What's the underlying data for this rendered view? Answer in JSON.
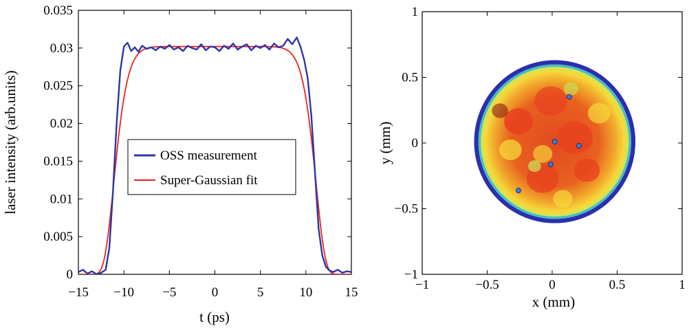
{
  "chart_data": [
    {
      "type": "line",
      "title": "",
      "xlabel": "t (ps)",
      "ylabel": "laser intensity (arb.units)",
      "xlim": [
        -15,
        15
      ],
      "ylim": [
        0,
        0.035
      ],
      "xticks": [
        -15,
        -10,
        -5,
        0,
        5,
        10,
        15
      ],
      "xtick_labels": [
        "−15",
        "−10",
        "−5",
        "0",
        "5",
        "10",
        "15"
      ],
      "yticks": [
        0,
        0.005,
        0.01,
        0.015,
        0.02,
        0.025,
        0.03,
        0.035
      ],
      "ytick_labels": [
        "0",
        "0.005",
        "0.01",
        "0.015",
        "0.02",
        "0.025",
        "0.03",
        "0.035"
      ],
      "grid": false,
      "legend_position": "center-left",
      "series": [
        {
          "name": "OSS measurement",
          "color": "#2b35a6",
          "x": [
            -15,
            -14.5,
            -14,
            -13.5,
            -13,
            -12.5,
            -12,
            -11.6,
            -11.2,
            -10.8,
            -10.4,
            -10.0,
            -9.6,
            -9.2,
            -8.8,
            -8.4,
            -8.0,
            -7.5,
            -7.0,
            -6.5,
            -6.0,
            -5.5,
            -5.0,
            -4.5,
            -4.0,
            -3.5,
            -3.0,
            -2.5,
            -2.0,
            -1.5,
            -1.0,
            -0.5,
            0.0,
            0.5,
            1.0,
            1.5,
            2.0,
            2.5,
            3.0,
            3.5,
            4.0,
            4.5,
            5.0,
            5.5,
            6.0,
            6.5,
            7.0,
            7.5,
            8.0,
            8.5,
            9.0,
            9.4,
            9.8,
            10.2,
            10.6,
            11.0,
            11.4,
            11.8,
            12.2,
            12.6,
            13.0,
            13.5,
            14.0,
            14.5,
            15.0
          ],
          "y": [
            0.0003,
            0.0006,
            0.0001,
            0.0004,
            0.0,
            0.0002,
            0.0006,
            0.0035,
            0.011,
            0.02,
            0.027,
            0.0302,
            0.0307,
            0.0296,
            0.0301,
            0.0295,
            0.0303,
            0.0299,
            0.0301,
            0.0297,
            0.0302,
            0.0299,
            0.0304,
            0.0298,
            0.0301,
            0.0296,
            0.0303,
            0.03,
            0.0298,
            0.0305,
            0.0297,
            0.0302,
            0.0301,
            0.0296,
            0.0303,
            0.0299,
            0.0306,
            0.0298,
            0.0302,
            0.0305,
            0.0297,
            0.0303,
            0.03,
            0.0304,
            0.0298,
            0.0306,
            0.0301,
            0.0303,
            0.0312,
            0.0305,
            0.0314,
            0.0302,
            0.0285,
            0.026,
            0.021,
            0.0135,
            0.006,
            0.0025,
            0.001,
            0.0005,
            0.0003,
            0.0006,
            0.0002,
            0.0004,
            0.0003
          ]
        },
        {
          "name": "Super-Gaussian fit",
          "color": "#e8231f",
          "center": 0,
          "half_width": 11.2,
          "order": 12,
          "amplitude": 0.0302
        }
      ]
    },
    {
      "type": "heatmap",
      "title": "",
      "xlabel": "x (mm)",
      "ylabel": "y (mm)",
      "xlim": [
        -1,
        1
      ],
      "ylim": [
        -1,
        1
      ],
      "xticks": [
        -1,
        -0.5,
        0,
        0.5,
        1
      ],
      "xtick_labels": [
        "−1",
        "−0.5",
        "0",
        "0.5",
        "1"
      ],
      "yticks": [
        -1,
        -0.5,
        0,
        0.5,
        1
      ],
      "ytick_labels": [
        "−1",
        "−0.5",
        "0",
        "0.5",
        "1"
      ],
      "spot": {
        "center_x": 0.02,
        "center_y": 0.01,
        "radius": 0.62
      },
      "colors": {
        "rim": "#2a2fb0",
        "ring": "#35b8d8",
        "edge": "#c7e85a",
        "mid": "#f6d83a",
        "hot": "#e8401f",
        "peak": "#7a1010"
      }
    }
  ]
}
